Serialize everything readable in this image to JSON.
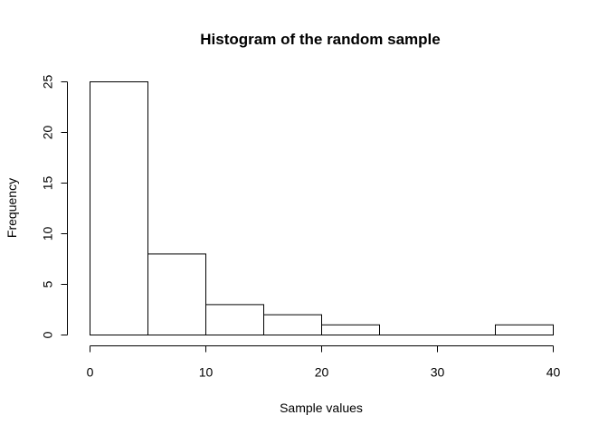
{
  "chart_data": {
    "type": "bar",
    "title": "Histogram of the random sample",
    "xlabel": "Sample values",
    "ylabel": "Frequency",
    "bins": [
      {
        "from": 0,
        "to": 5,
        "count": 25
      },
      {
        "from": 5,
        "to": 10,
        "count": 8
      },
      {
        "from": 10,
        "to": 15,
        "count": 3
      },
      {
        "from": 15,
        "to": 20,
        "count": 2
      },
      {
        "from": 20,
        "to": 25,
        "count": 1
      },
      {
        "from": 25,
        "to": 30,
        "count": 0
      },
      {
        "from": 30,
        "to": 35,
        "count": 0
      },
      {
        "from": 35,
        "to": 40,
        "count": 1
      }
    ],
    "xlim": [
      0,
      40
    ],
    "ylim": [
      0,
      25
    ],
    "x_ticks": [
      0,
      10,
      20,
      30,
      40
    ],
    "y_ticks": [
      0,
      5,
      10,
      15,
      20,
      25
    ],
    "grid": false,
    "colors": {
      "bar_fill": "#ffffff",
      "bar_stroke": "#000000"
    }
  }
}
